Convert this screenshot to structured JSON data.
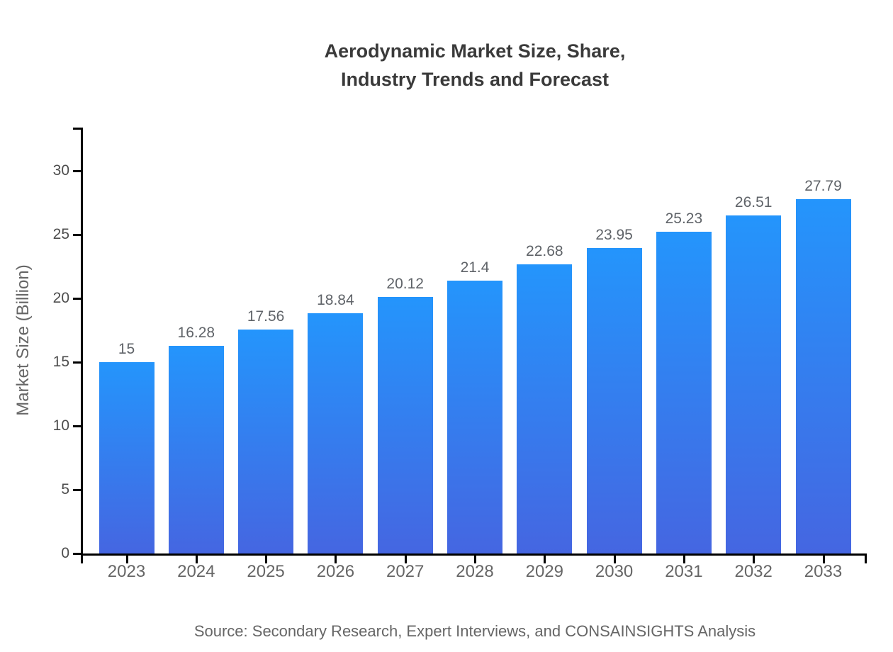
{
  "title": {
    "line1": "Aerodynamic Market Size, Share,",
    "line2": "Industry Trends and Forecast"
  },
  "source": "Source: Secondary Research, Expert Interviews, and CONSAINSIGHTS Analysis",
  "chart_data": {
    "type": "bar",
    "title": "Aerodynamic Market Size, Share, Industry Trends and Forecast",
    "categories": [
      "2023",
      "2024",
      "2025",
      "2026",
      "2027",
      "2028",
      "2029",
      "2030",
      "2031",
      "2032",
      "2033"
    ],
    "values": [
      15,
      16.28,
      17.56,
      18.84,
      20.12,
      21.4,
      22.68,
      23.95,
      25.23,
      26.51,
      27.79
    ],
    "value_labels": [
      "15",
      "16.28",
      "17.56",
      "18.84",
      "20.12",
      "21.4",
      "22.68",
      "23.95",
      "25.23",
      "26.51",
      "27.79"
    ],
    "xlabel": "",
    "ylabel": "Market Size (Billion)",
    "ylim": [
      0,
      33.4
    ],
    "yticks": [
      0,
      5,
      10,
      15,
      20,
      25,
      30
    ],
    "grid": false,
    "legend_position": "none",
    "bar_color_top": "#2495fc",
    "bar_color_bottom": "#4566e1",
    "axis_color": "#000000",
    "label_color": "#666666",
    "title_color": "#3a3a3a"
  }
}
